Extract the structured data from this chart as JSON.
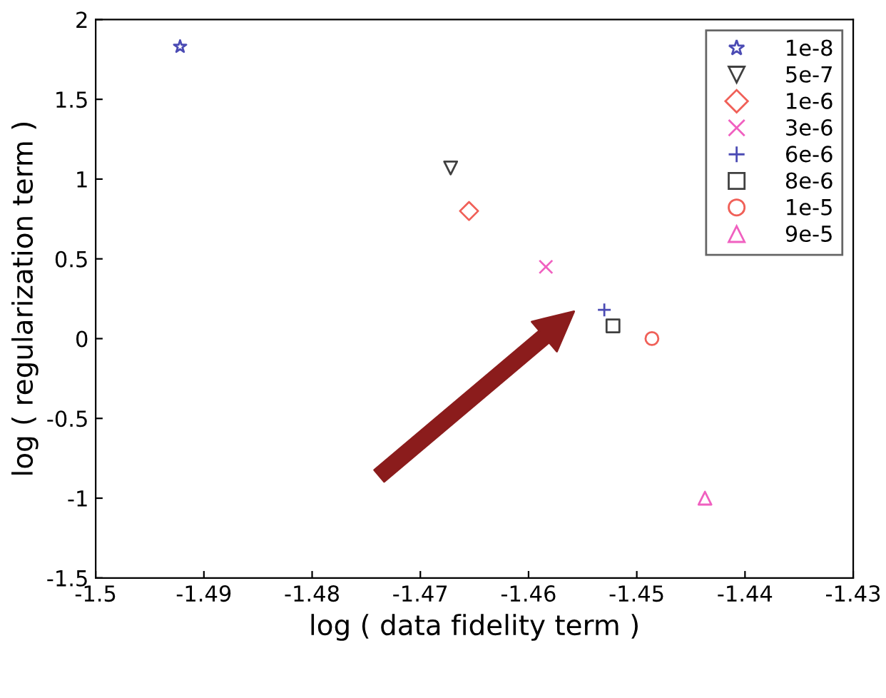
{
  "chart_data": {
    "type": "scatter",
    "xlabel": "log ( data fidelity term )",
    "ylabel": "log ( regularization term )",
    "xlim": [
      -1.5,
      -1.43
    ],
    "xticks": [
      -1.5,
      -1.49,
      -1.48,
      -1.47,
      -1.46,
      -1.45,
      -1.44,
      -1.43
    ],
    "ylim": [
      -1.5,
      2
    ],
    "yticks": [
      -1.5,
      -1,
      -0.5,
      0,
      0.5,
      1,
      1.5,
      2
    ],
    "grid": false,
    "legend": "top right",
    "series": [
      {
        "name": "1e-8",
        "color": "#4b4bb4",
        "marker": "star",
        "x": [
          -1.4922
        ],
        "values": [
          1.83
        ]
      },
      {
        "name": "5e-7",
        "color": "#404040",
        "marker": "triangle_down",
        "x": [
          -1.4672
        ],
        "values": [
          1.07
        ]
      },
      {
        "name": "1e-6",
        "color": "#f06058",
        "marker": "diamond",
        "x": [
          -1.4655
        ],
        "values": [
          0.8
        ]
      },
      {
        "name": "3e-6",
        "color": "#f060c0",
        "marker": "cross",
        "x": [
          -1.4584
        ],
        "values": [
          0.45
        ]
      },
      {
        "name": "6e-6",
        "color": "#4b4bb4",
        "marker": "plus",
        "x": [
          -1.453
        ],
        "values": [
          0.18
        ]
      },
      {
        "name": "8e-6",
        "color": "#404040",
        "marker": "square",
        "x": [
          -1.4522
        ],
        "values": [
          0.08
        ]
      },
      {
        "name": "1e-5",
        "color": "#f06058",
        "marker": "circle",
        "x": [
          -1.4486
        ],
        "values": [
          0.0
        ]
      },
      {
        "name": "9e-5",
        "color": "#f060c0",
        "marker": "triangle",
        "x": [
          -1.4437
        ],
        "values": [
          -1.0
        ]
      }
    ]
  }
}
